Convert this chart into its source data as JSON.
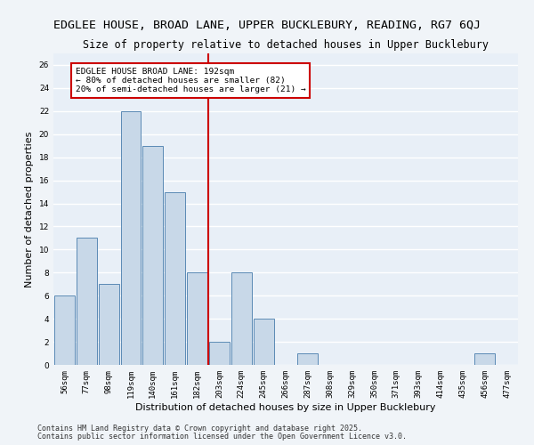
{
  "title": "EDGLEE HOUSE, BROAD LANE, UPPER BUCKLEBURY, READING, RG7 6QJ",
  "subtitle": "Size of property relative to detached houses in Upper Bucklebury",
  "xlabel": "Distribution of detached houses by size in Upper Bucklebury",
  "ylabel": "Number of detached properties",
  "categories": [
    "56sqm",
    "77sqm",
    "98sqm",
    "119sqm",
    "140sqm",
    "161sqm",
    "182sqm",
    "203sqm",
    "224sqm",
    "245sqm",
    "266sqm",
    "287sqm",
    "308sqm",
    "329sqm",
    "350sqm",
    "371sqm",
    "393sqm",
    "414sqm",
    "435sqm",
    "456sqm",
    "477sqm"
  ],
  "values": [
    6,
    11,
    7,
    22,
    19,
    15,
    8,
    2,
    8,
    4,
    0,
    1,
    0,
    0,
    0,
    0,
    0,
    0,
    0,
    1,
    0
  ],
  "bar_color": "#c8d8e8",
  "bar_edge_color": "#5b8ab5",
  "vline_index": 6.5,
  "annotation_title": "EDGLEE HOUSE BROAD LANE: 192sqm",
  "annotation_line1": "← 80% of detached houses are smaller (82)",
  "annotation_line2": "20% of semi-detached houses are larger (21) →",
  "annotation_box_color": "#ffffff",
  "annotation_border_color": "#cc0000",
  "vline_color": "#cc0000",
  "ylim": [
    0,
    27
  ],
  "yticks": [
    0,
    2,
    4,
    6,
    8,
    10,
    12,
    14,
    16,
    18,
    20,
    22,
    24,
    26
  ],
  "axes_bg_color": "#e8eff7",
  "fig_bg_color": "#f0f4f8",
  "grid_color": "#ffffff",
  "footer1": "Contains HM Land Registry data © Crown copyright and database right 2025.",
  "footer2": "Contains public sector information licensed under the Open Government Licence v3.0.",
  "title_fontsize": 9.5,
  "subtitle_fontsize": 8.5,
  "xlabel_fontsize": 8,
  "ylabel_fontsize": 8,
  "tick_fontsize": 6.5,
  "ann_fontsize": 6.8,
  "footer_fontsize": 6
}
